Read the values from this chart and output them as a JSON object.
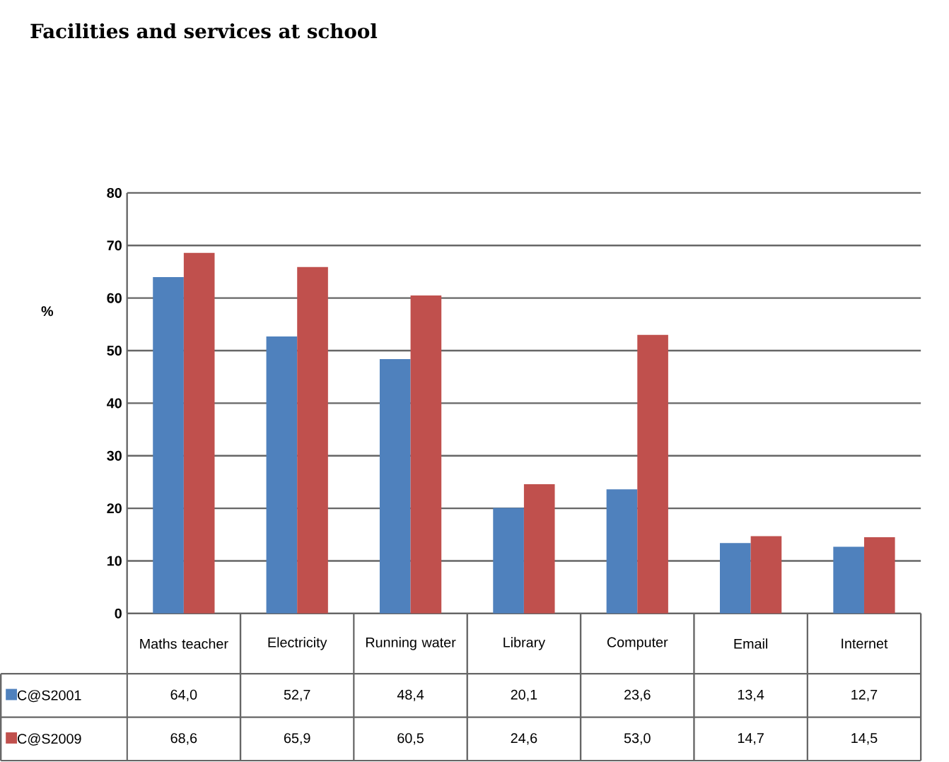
{
  "chart_data": {
    "type": "bar",
    "title": "Facilities and services at school",
    "ylabel": "%",
    "categories": [
      "Maths teacher",
      "Electricity",
      "Running water",
      "Library",
      "Computer",
      "Email",
      "Internet"
    ],
    "series": [
      {
        "name": "C@S2001",
        "color": "#4f81bd",
        "values": [
          64.0,
          52.7,
          48.4,
          20.1,
          23.6,
          13.4,
          12.7
        ],
        "value_labels": [
          "64,0",
          "52,7",
          "48,4",
          "20,1",
          "23,6",
          "13,4",
          "12,7"
        ]
      },
      {
        "name": "C@S2009",
        "color": "#c0504d",
        "values": [
          68.6,
          65.9,
          60.5,
          24.6,
          53.0,
          14.7,
          14.5
        ],
        "value_labels": [
          "68,6",
          "65,9",
          "60,5",
          "24,6",
          "53,0",
          "14,7",
          "14,5"
        ]
      }
    ],
    "ylim": [
      0,
      80
    ],
    "yticks": [
      0,
      10,
      20,
      30,
      40,
      50,
      60,
      70,
      80
    ],
    "grid": "y",
    "legend": "bottom"
  }
}
